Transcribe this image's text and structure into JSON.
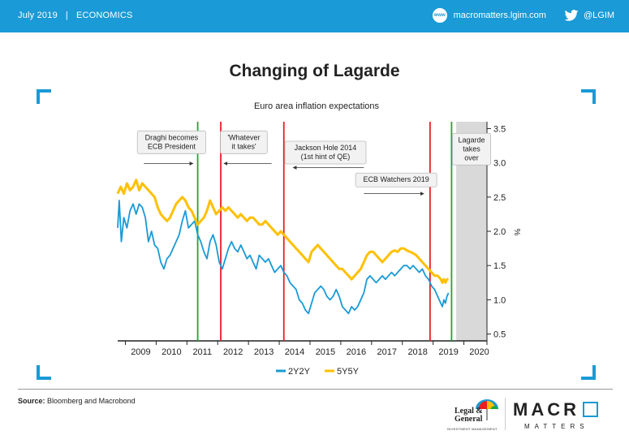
{
  "header": {
    "date": "July 2019",
    "separator": "|",
    "section": "ECONOMICS",
    "website": "macromatters.lgim.com",
    "www_icon_text": "www",
    "twitter": "@LGIM",
    "icons": [
      "www-icon",
      "twitter-bird-icon"
    ],
    "bar_color": "#1a9ad6"
  },
  "title": "Changing of Lagarde",
  "chart_data": {
    "type": "line",
    "title": "Euro area inflation expectations",
    "xlabel": "",
    "ylabel": "%",
    "x_ticks": [
      "2009",
      "2010",
      "2011",
      "2012",
      "2013",
      "2014",
      "2015",
      "2016",
      "2017",
      "2018",
      "2019",
      "2020"
    ],
    "xlim": [
      2008.75,
      2020.75
    ],
    "ylim": [
      0.4,
      3.6
    ],
    "y_ticks": [
      "0.5",
      "1.0",
      "1.5",
      "2.0",
      "2.5",
      "3.0",
      "3.5"
    ],
    "y_axis_side": "right",
    "legend_position": "bottom-center",
    "series": [
      {
        "name": "2Y2Y",
        "color": "#1a9ad6",
        "points": [
          [
            2008.75,
            2.05
          ],
          [
            2008.8,
            2.45
          ],
          [
            2008.87,
            1.85
          ],
          [
            2008.95,
            2.2
          ],
          [
            2009.05,
            2.05
          ],
          [
            2009.15,
            2.3
          ],
          [
            2009.25,
            2.4
          ],
          [
            2009.35,
            2.25
          ],
          [
            2009.45,
            2.4
          ],
          [
            2009.55,
            2.35
          ],
          [
            2009.65,
            2.2
          ],
          [
            2009.75,
            1.85
          ],
          [
            2009.85,
            2.0
          ],
          [
            2009.95,
            1.8
          ],
          [
            2010.05,
            1.75
          ],
          [
            2010.15,
            1.55
          ],
          [
            2010.25,
            1.45
          ],
          [
            2010.35,
            1.6
          ],
          [
            2010.45,
            1.65
          ],
          [
            2010.55,
            1.75
          ],
          [
            2010.65,
            1.85
          ],
          [
            2010.75,
            1.95
          ],
          [
            2010.85,
            2.15
          ],
          [
            2010.95,
            2.3
          ],
          [
            2011.05,
            2.05
          ],
          [
            2011.15,
            2.1
          ],
          [
            2011.25,
            2.15
          ],
          [
            2011.35,
            1.95
          ],
          [
            2011.45,
            1.85
          ],
          [
            2011.55,
            1.7
          ],
          [
            2011.65,
            1.6
          ],
          [
            2011.75,
            1.85
          ],
          [
            2011.85,
            1.95
          ],
          [
            2011.95,
            1.8
          ],
          [
            2012.05,
            1.55
          ],
          [
            2012.15,
            1.45
          ],
          [
            2012.25,
            1.6
          ],
          [
            2012.35,
            1.75
          ],
          [
            2012.45,
            1.85
          ],
          [
            2012.55,
            1.75
          ],
          [
            2012.65,
            1.7
          ],
          [
            2012.75,
            1.8
          ],
          [
            2012.85,
            1.7
          ],
          [
            2012.95,
            1.6
          ],
          [
            2013.05,
            1.65
          ],
          [
            2013.15,
            1.55
          ],
          [
            2013.25,
            1.45
          ],
          [
            2013.35,
            1.65
          ],
          [
            2013.45,
            1.6
          ],
          [
            2013.55,
            1.55
          ],
          [
            2013.65,
            1.6
          ],
          [
            2013.75,
            1.5
          ],
          [
            2013.85,
            1.4
          ],
          [
            2013.95,
            1.45
          ],
          [
            2014.05,
            1.5
          ],
          [
            2014.15,
            1.4
          ],
          [
            2014.25,
            1.35
          ],
          [
            2014.35,
            1.25
          ],
          [
            2014.45,
            1.2
          ],
          [
            2014.55,
            1.15
          ],
          [
            2014.65,
            1.0
          ],
          [
            2014.75,
            0.95
          ],
          [
            2014.85,
            0.85
          ],
          [
            2014.95,
            0.8
          ],
          [
            2015.05,
            0.95
          ],
          [
            2015.15,
            1.1
          ],
          [
            2015.25,
            1.15
          ],
          [
            2015.35,
            1.2
          ],
          [
            2015.45,
            1.15
          ],
          [
            2015.55,
            1.05
          ],
          [
            2015.65,
            1.0
          ],
          [
            2015.75,
            1.05
          ],
          [
            2015.85,
            1.15
          ],
          [
            2015.95,
            1.05
          ],
          [
            2016.05,
            0.9
          ],
          [
            2016.15,
            0.85
          ],
          [
            2016.25,
            0.8
          ],
          [
            2016.35,
            0.9
          ],
          [
            2016.45,
            0.85
          ],
          [
            2016.55,
            0.9
          ],
          [
            2016.65,
            1.0
          ],
          [
            2016.75,
            1.1
          ],
          [
            2016.85,
            1.3
          ],
          [
            2016.95,
            1.35
          ],
          [
            2017.05,
            1.3
          ],
          [
            2017.15,
            1.25
          ],
          [
            2017.25,
            1.3
          ],
          [
            2017.35,
            1.35
          ],
          [
            2017.45,
            1.3
          ],
          [
            2017.55,
            1.35
          ],
          [
            2017.65,
            1.4
          ],
          [
            2017.75,
            1.35
          ],
          [
            2017.85,
            1.4
          ],
          [
            2017.95,
            1.45
          ],
          [
            2018.05,
            1.5
          ],
          [
            2018.15,
            1.5
          ],
          [
            2018.25,
            1.45
          ],
          [
            2018.35,
            1.5
          ],
          [
            2018.45,
            1.45
          ],
          [
            2018.55,
            1.4
          ],
          [
            2018.65,
            1.45
          ],
          [
            2018.75,
            1.35
          ],
          [
            2018.85,
            1.3
          ],
          [
            2018.95,
            1.2
          ],
          [
            2019.05,
            1.15
          ],
          [
            2019.15,
            1.05
          ],
          [
            2019.25,
            0.95
          ],
          [
            2019.3,
            0.9
          ],
          [
            2019.35,
            1.0
          ],
          [
            2019.4,
            0.95
          ],
          [
            2019.45,
            1.05
          ],
          [
            2019.5,
            1.1
          ]
        ]
      },
      {
        "name": "5Y5Y",
        "color": "#ffc000",
        "points": [
          [
            2008.75,
            2.55
          ],
          [
            2008.85,
            2.65
          ],
          [
            2008.95,
            2.55
          ],
          [
            2009.05,
            2.7
          ],
          [
            2009.15,
            2.6
          ],
          [
            2009.25,
            2.65
          ],
          [
            2009.35,
            2.75
          ],
          [
            2009.45,
            2.6
          ],
          [
            2009.55,
            2.7
          ],
          [
            2009.65,
            2.65
          ],
          [
            2009.75,
            2.6
          ],
          [
            2009.85,
            2.55
          ],
          [
            2009.95,
            2.5
          ],
          [
            2010.05,
            2.35
          ],
          [
            2010.15,
            2.25
          ],
          [
            2010.25,
            2.2
          ],
          [
            2010.35,
            2.15
          ],
          [
            2010.45,
            2.2
          ],
          [
            2010.55,
            2.3
          ],
          [
            2010.65,
            2.4
          ],
          [
            2010.75,
            2.45
          ],
          [
            2010.85,
            2.5
          ],
          [
            2010.95,
            2.45
          ],
          [
            2011.05,
            2.35
          ],
          [
            2011.15,
            2.3
          ],
          [
            2011.25,
            2.2
          ],
          [
            2011.35,
            2.1
          ],
          [
            2011.45,
            2.15
          ],
          [
            2011.55,
            2.2
          ],
          [
            2011.65,
            2.3
          ],
          [
            2011.75,
            2.45
          ],
          [
            2011.85,
            2.35
          ],
          [
            2011.95,
            2.25
          ],
          [
            2012.05,
            2.3
          ],
          [
            2012.15,
            2.35
          ],
          [
            2012.25,
            2.3
          ],
          [
            2012.35,
            2.35
          ],
          [
            2012.45,
            2.3
          ],
          [
            2012.55,
            2.25
          ],
          [
            2012.65,
            2.2
          ],
          [
            2012.75,
            2.25
          ],
          [
            2012.85,
            2.2
          ],
          [
            2012.95,
            2.15
          ],
          [
            2013.05,
            2.2
          ],
          [
            2013.15,
            2.2
          ],
          [
            2013.25,
            2.15
          ],
          [
            2013.35,
            2.1
          ],
          [
            2013.45,
            2.1
          ],
          [
            2013.55,
            2.15
          ],
          [
            2013.65,
            2.1
          ],
          [
            2013.75,
            2.05
          ],
          [
            2013.85,
            2.0
          ],
          [
            2013.95,
            1.95
          ],
          [
            2014.05,
            2.0
          ],
          [
            2014.15,
            1.95
          ],
          [
            2014.25,
            1.9
          ],
          [
            2014.35,
            1.85
          ],
          [
            2014.45,
            1.8
          ],
          [
            2014.55,
            1.75
          ],
          [
            2014.65,
            1.7
          ],
          [
            2014.75,
            1.65
          ],
          [
            2014.85,
            1.6
          ],
          [
            2014.95,
            1.55
          ],
          [
            2015.05,
            1.7
          ],
          [
            2015.15,
            1.75
          ],
          [
            2015.25,
            1.8
          ],
          [
            2015.35,
            1.75
          ],
          [
            2015.45,
            1.7
          ],
          [
            2015.55,
            1.65
          ],
          [
            2015.65,
            1.6
          ],
          [
            2015.75,
            1.55
          ],
          [
            2015.85,
            1.5
          ],
          [
            2015.95,
            1.45
          ],
          [
            2016.05,
            1.45
          ],
          [
            2016.15,
            1.4
          ],
          [
            2016.25,
            1.35
          ],
          [
            2016.35,
            1.3
          ],
          [
            2016.45,
            1.35
          ],
          [
            2016.55,
            1.4
          ],
          [
            2016.65,
            1.45
          ],
          [
            2016.75,
            1.55
          ],
          [
            2016.85,
            1.65
          ],
          [
            2016.95,
            1.7
          ],
          [
            2017.05,
            1.7
          ],
          [
            2017.15,
            1.65
          ],
          [
            2017.25,
            1.6
          ],
          [
            2017.35,
            1.55
          ],
          [
            2017.45,
            1.6
          ],
          [
            2017.55,
            1.65
          ],
          [
            2017.65,
            1.7
          ],
          [
            2017.75,
            1.72
          ],
          [
            2017.85,
            1.7
          ],
          [
            2017.95,
            1.75
          ],
          [
            2018.05,
            1.75
          ],
          [
            2018.15,
            1.72
          ],
          [
            2018.25,
            1.7
          ],
          [
            2018.35,
            1.68
          ],
          [
            2018.45,
            1.65
          ],
          [
            2018.55,
            1.6
          ],
          [
            2018.65,
            1.55
          ],
          [
            2018.75,
            1.5
          ],
          [
            2018.85,
            1.45
          ],
          [
            2018.95,
            1.4
          ],
          [
            2019.05,
            1.35
          ],
          [
            2019.15,
            1.35
          ],
          [
            2019.25,
            1.3
          ],
          [
            2019.3,
            1.25
          ],
          [
            2019.35,
            1.3
          ],
          [
            2019.4,
            1.25
          ],
          [
            2019.45,
            1.3
          ],
          [
            2019.5,
            1.3
          ]
        ]
      }
    ],
    "vertical_lines": [
      {
        "x": 2011.35,
        "color": "#1fa637"
      },
      {
        "x": 2012.1,
        "color": "#ee1c25"
      },
      {
        "x": 2014.15,
        "color": "#ee1c25"
      },
      {
        "x": 2018.9,
        "color": "#ee1c25"
      },
      {
        "x": 2019.6,
        "color": "#1fa637"
      }
    ],
    "shaded_region": {
      "from": 2019.75,
      "to": 2020.75,
      "color": "#d9d9d9"
    },
    "annotations": [
      {
        "lines": [
          "Draghi becomes",
          "ECB President"
        ],
        "x": 2010.5,
        "y": 3.3,
        "arrow": "right",
        "arrow_from": 2009.6,
        "arrow_to": 2011.2,
        "arrow_y": 2.99
      },
      {
        "lines": [
          "'Whatever",
          "it takes'"
        ],
        "x": 2012.85,
        "y": 3.3,
        "arrow": "left",
        "arrow_from": 2013.75,
        "arrow_to": 2012.2,
        "arrow_y": 2.99
      },
      {
        "lines": [
          "Jackson Hole 2014",
          "(1st hint of QE)"
        ],
        "x": 2015.5,
        "y": 3.15,
        "arrow": "left",
        "arrow_from": 2016.75,
        "arrow_to": 2014.45,
        "arrow_y": 2.93
      },
      {
        "lines": [
          "ECB Watchers 2019"
        ],
        "x": 2017.8,
        "y": 2.75,
        "arrow": "right",
        "arrow_from": 2016.75,
        "arrow_to": 2018.7,
        "arrow_y": 2.55
      },
      {
        "lines": [
          "Lagarde",
          "takes",
          "over"
        ],
        "x": 2020.25,
        "y": 3.2,
        "arrow": "none"
      }
    ]
  },
  "source": {
    "label": "Source:",
    "text": "Bloomberg and Macrobond"
  },
  "logos": {
    "lg_line1": "Legal &",
    "lg_line2": "General",
    "lg_sub": "INVESTMENT MANAGEMENT",
    "mm_macro": "MACR",
    "mm_matters": "MATTERS"
  }
}
